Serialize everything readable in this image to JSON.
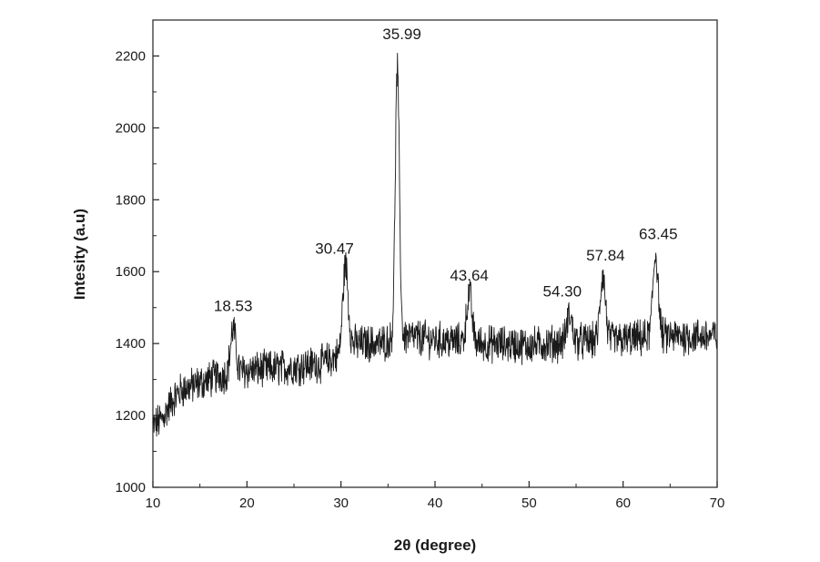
{
  "chart_data": {
    "type": "line",
    "title": "",
    "xlabel": "2θ (degree)",
    "ylabel": "Intesity (a.u)",
    "xlim": [
      10,
      70
    ],
    "ylim": [
      1000,
      2300
    ],
    "xticks": [
      10,
      20,
      30,
      40,
      50,
      60,
      70
    ],
    "yticks": [
      1000,
      1200,
      1400,
      1600,
      1800,
      2000,
      2200
    ],
    "grid": false,
    "legend": "none",
    "line_color": "#1a1a1a",
    "baseline": [
      [
        10,
        1170
      ],
      [
        11,
        1190
      ],
      [
        12,
        1240
      ],
      [
        13,
        1270
      ],
      [
        15,
        1290
      ],
      [
        17,
        1310
      ],
      [
        20,
        1325
      ],
      [
        25,
        1335
      ],
      [
        28,
        1345
      ],
      [
        30,
        1370
      ],
      [
        31,
        1400
      ],
      [
        34,
        1400
      ],
      [
        35,
        1405
      ],
      [
        37,
        1420
      ],
      [
        40,
        1410
      ],
      [
        45,
        1400
      ],
      [
        50,
        1395
      ],
      [
        55,
        1405
      ],
      [
        60,
        1410
      ],
      [
        65,
        1420
      ],
      [
        70,
        1420
      ]
    ],
    "peaks": [
      {
        "x": 18.53,
        "y": 1440,
        "label": "18.53"
      },
      {
        "x": 30.47,
        "y": 1620,
        "label": "30.47"
      },
      {
        "x": 35.99,
        "y": 2160,
        "label": "35.99"
      },
      {
        "x": 43.64,
        "y": 1540,
        "label": "43.64"
      },
      {
        "x": 54.3,
        "y": 1480,
        "label": "54.30"
      },
      {
        "x": 57.84,
        "y": 1590,
        "label": "57.84"
      },
      {
        "x": 63.45,
        "y": 1650,
        "label": "63.45"
      }
    ],
    "noise_amplitude": 45
  }
}
